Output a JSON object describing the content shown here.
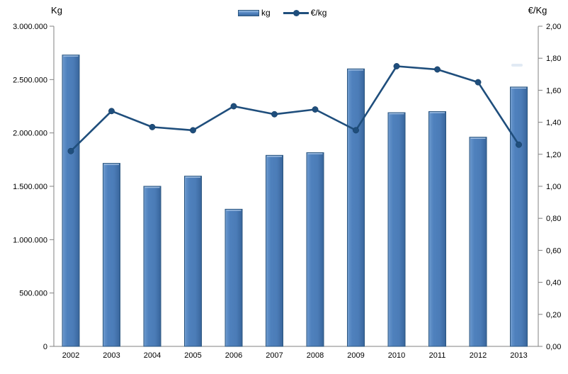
{
  "chart_data": {
    "type": "combo-bar-line",
    "title": "",
    "categories": [
      "2002",
      "2003",
      "2004",
      "2005",
      "2006",
      "2007",
      "2008",
      "2009",
      "2010",
      "2011",
      "2012",
      "2013"
    ],
    "series": [
      {
        "name": "kg",
        "type": "bar",
        "axis": "left",
        "values": [
          2730000,
          1715000,
          1500000,
          1595000,
          1285000,
          1790000,
          1815000,
          2600000,
          2190000,
          2200000,
          1960000,
          2430000
        ]
      },
      {
        "name": "€/kg",
        "type": "line",
        "axis": "right",
        "values": [
          1.22,
          1.47,
          1.37,
          1.35,
          1.5,
          1.45,
          1.48,
          1.35,
          1.75,
          1.73,
          1.65,
          1.26
        ]
      }
    ],
    "left_axis": {
      "title": "Kg",
      "min": 0,
      "max": 3000000,
      "tick_labels": [
        "3.000.000",
        "2.500.000",
        "2.000.000",
        "1.500.000",
        "1.000.000",
        "500.000",
        "0"
      ]
    },
    "right_axis": {
      "title": "€/Kg",
      "min": 0,
      "max": 2,
      "tick_labels": [
        "2,00",
        "1,80",
        "1,60",
        "1,40",
        "1,20",
        "1,00",
        "0,80",
        "0,60",
        "0,40",
        "0,20",
        "0,00"
      ]
    },
    "legend": {
      "position": "top-center",
      "entries": [
        "kg",
        "€/kg"
      ]
    },
    "grid": "off",
    "colors": {
      "bar_fill": "#4f81bd",
      "bar_fill_light": "#86abd8",
      "bar_fill_dark": "#38659b",
      "bar_border": "#2b567f",
      "bar_top_highlight": "#a8c4e5",
      "line": "#1f4e7c",
      "axis": "#808080",
      "text": "#000000"
    }
  }
}
